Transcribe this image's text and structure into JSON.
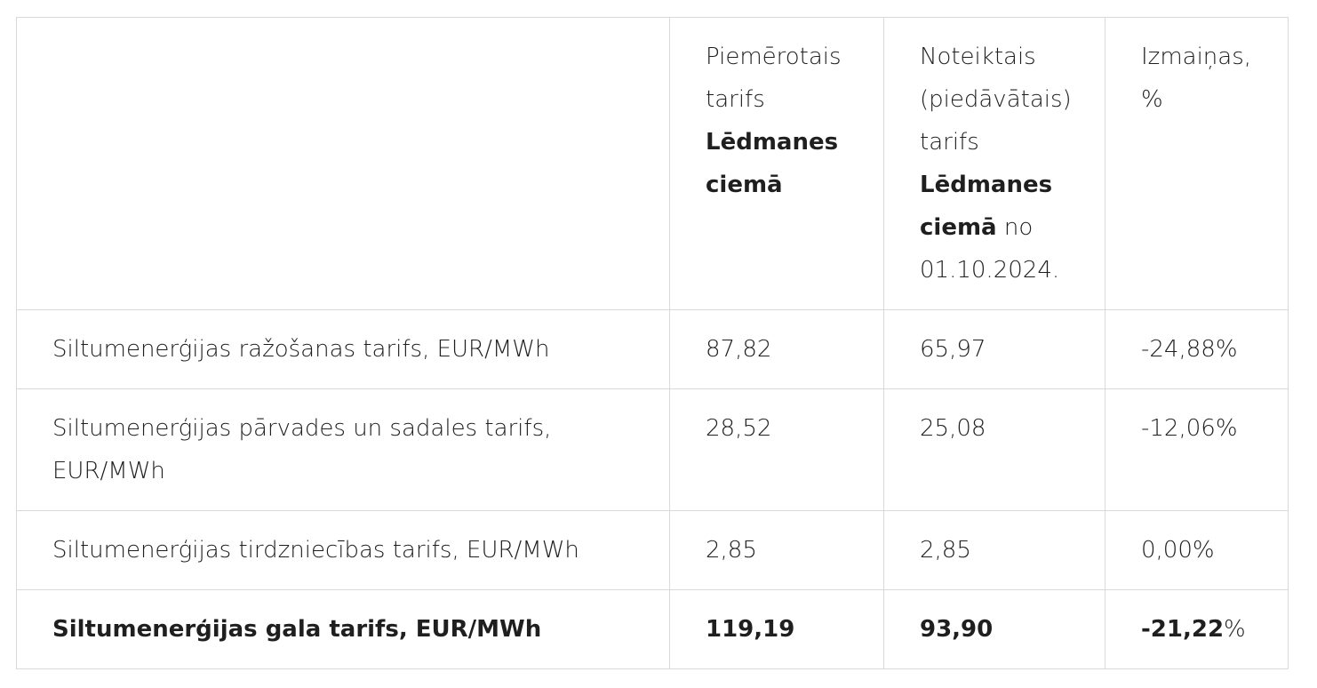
{
  "table": {
    "header": {
      "col1": "",
      "col2": {
        "text": "Piemērotais tarifs",
        "bold": "Lēdmanes ciemā"
      },
      "col3": {
        "text": "Noteiktais (piedāvātais) tarifs",
        "bold": "Lēdmanes ciemā",
        "tail": "no 01.10.2024."
      },
      "col4": "Izmaiņas, %"
    },
    "rows": [
      {
        "label": "Siltumenerģijas ražošanas tarifs, EUR/MWh",
        "applied": "87,82",
        "proposed": "65,97",
        "change": "-24,88%"
      },
      {
        "label": "Siltumenerģijas pārvades un sadales tarifs, EUR/MWh",
        "applied": "28,52",
        "proposed": "25,08",
        "change": "-12,06%"
      },
      {
        "label": "Siltumenerģijas tirdzniecības tarifs, EUR/MWh",
        "applied": "2,85",
        "proposed": "2,85",
        "change": "0,00%"
      }
    ],
    "total": {
      "label": "Siltumenerģijas gala tarifs, EUR/MWh",
      "applied": "119,19",
      "proposed": "93,90",
      "change_number": "-21,22",
      "change_sign": "%"
    }
  }
}
